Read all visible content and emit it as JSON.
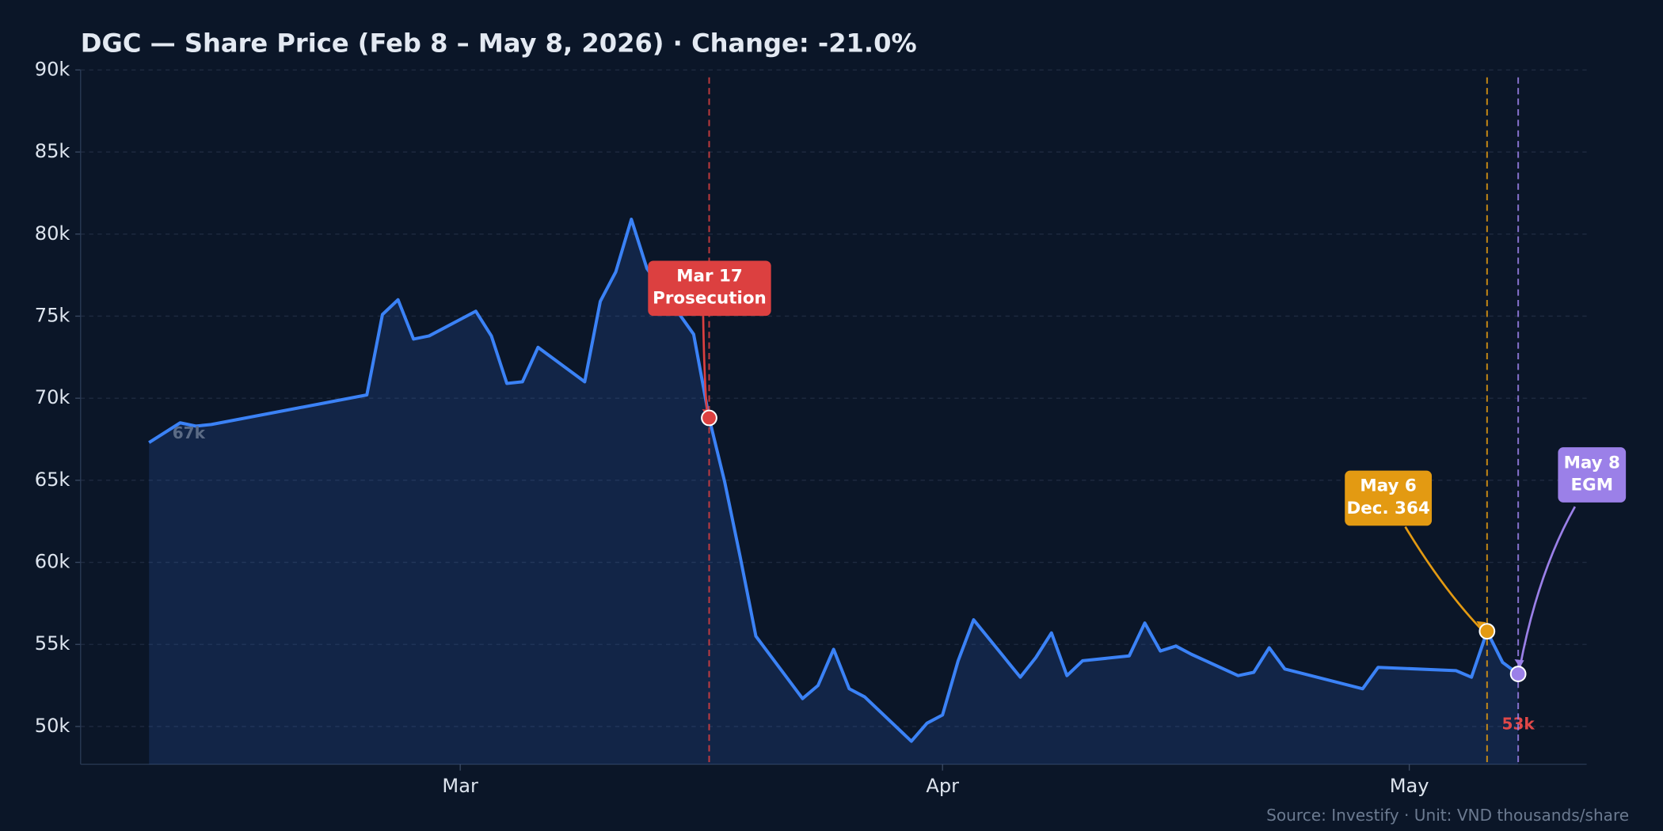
{
  "chart_data": {
    "type": "line",
    "title": "DGC — Share Price (Feb 8 – May 8, 2026)  ·  Change: -21.0%",
    "source": "Source: Investify · Unit: VND thousands/share",
    "x": [
      40,
      42,
      43,
      44,
      54,
      55,
      56,
      57,
      58,
      61,
      62,
      63,
      64,
      65,
      68,
      69,
      70,
      71,
      72,
      75,
      76,
      77,
      78,
      79,
      82,
      83,
      84,
      85,
      86,
      89,
      90,
      91,
      92,
      93,
      96,
      97,
      98,
      99,
      100,
      103,
      104,
      105,
      106,
      107,
      110,
      111,
      112,
      113,
      118,
      119,
      124,
      125,
      126,
      127,
      128
    ],
    "series": [
      {
        "name": "DGC",
        "color": "#3b82f6",
        "values": [
          67.3,
          68.5,
          68.3,
          68.4,
          70.2,
          75.1,
          76.0,
          73.6,
          73.8,
          75.3,
          73.8,
          70.9,
          71.0,
          73.1,
          71.0,
          75.9,
          77.7,
          80.9,
          77.9,
          73.9,
          68.8,
          64.9,
          60.3,
          55.5,
          51.7,
          52.5,
          54.7,
          52.3,
          51.8,
          49.1,
          50.2,
          50.7,
          54.0,
          56.5,
          53.0,
          54.2,
          55.7,
          53.1,
          54.0,
          54.3,
          56.3,
          54.6,
          54.9,
          54.4,
          53.1,
          53.3,
          54.8,
          53.5,
          52.3,
          53.6,
          53.4,
          53.0,
          55.8,
          53.9,
          53.2
        ],
        "first_label": "67k",
        "last_label": "53k"
      }
    ],
    "xlim": [
      35.6,
      132.4
    ],
    "xticks": [
      {
        "value": 60,
        "label": "Mar"
      },
      {
        "value": 91,
        "label": "Apr"
      },
      {
        "value": 121,
        "label": "May"
      }
    ],
    "ylim": [
      47.7,
      90
    ],
    "yticks": [
      {
        "value": 50,
        "label": "50k"
      },
      {
        "value": 55,
        "label": "55k"
      },
      {
        "value": 60,
        "label": "60k"
      },
      {
        "value": 65,
        "label": "65k"
      },
      {
        "value": 70,
        "label": "70k"
      },
      {
        "value": 75,
        "label": "75k"
      },
      {
        "value": 80,
        "label": "80k"
      },
      {
        "value": 85,
        "label": "85k"
      },
      {
        "value": 90,
        "label": "90k"
      }
    ],
    "grid": true,
    "events": [
      {
        "x": 76,
        "date": "Mar 17",
        "label": "Prosecution",
        "color": "#dc4040"
      },
      {
        "x": 126,
        "date": "May 6",
        "label": "Dec. 364",
        "color": "#e39a12"
      },
      {
        "x": 128,
        "date": "May 8",
        "label": "EGM",
        "color": "#9b80e8"
      }
    ]
  }
}
